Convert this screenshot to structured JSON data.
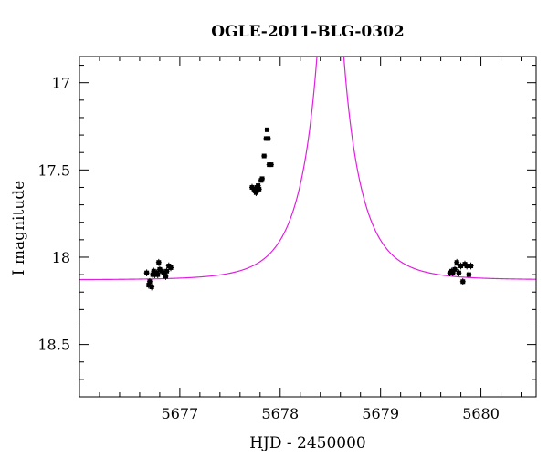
{
  "chart_data": {
    "type": "scatter",
    "title": "OGLE-2011-BLG-0302",
    "xlabel": "HJD - 2450000",
    "ylabel": "I magnitude",
    "xlim": [
      5676.0,
      5680.55
    ],
    "ylim": [
      18.8,
      16.85
    ],
    "y_inverted": true,
    "xticks": [
      5677,
      5678,
      5679,
      5680
    ],
    "xtick_labels": [
      "5677",
      "5678",
      "5679",
      "5680"
    ],
    "yticks": [
      17,
      17.5,
      18,
      18.5
    ],
    "ytick_labels": [
      "17",
      "17.5",
      "18",
      "18.5"
    ],
    "grid": false,
    "series": [
      {
        "kind": "points",
        "color": "#000000",
        "x": [
          5676.67,
          5676.69,
          5676.7,
          5676.72,
          5676.73,
          5676.74,
          5676.75,
          5676.77,
          5676.78,
          5676.79,
          5676.8,
          5676.82,
          5676.84,
          5676.86,
          5676.87,
          5676.89,
          5676.91,
          5677.72,
          5677.74,
          5677.75,
          5677.76,
          5677.77,
          5677.78,
          5677.79,
          5677.81,
          5677.82,
          5677.84,
          5677.86,
          5677.87,
          5677.88,
          5677.89,
          5677.91,
          5679.69,
          5679.71,
          5679.72,
          5679.74,
          5679.76,
          5679.78,
          5679.8,
          5679.82,
          5679.84,
          5679.86,
          5679.88,
          5679.9
        ],
        "y": [
          18.09,
          18.16,
          18.14,
          18.17,
          18.1,
          18.08,
          18.1,
          18.09,
          18.1,
          18.03,
          18.07,
          18.08,
          18.09,
          18.11,
          18.08,
          18.05,
          18.06,
          17.6,
          17.61,
          17.62,
          17.63,
          17.6,
          17.59,
          17.61,
          17.56,
          17.55,
          17.42,
          17.32,
          17.27,
          17.32,
          17.47,
          17.47,
          18.09,
          18.08,
          18.09,
          18.07,
          18.03,
          18.09,
          18.05,
          18.14,
          18.04,
          18.05,
          18.1,
          18.05
        ],
        "yerr": [
          0.02,
          0.02,
          0.02,
          0.02,
          0.02,
          0.02,
          0.02,
          0.02,
          0.02,
          0.02,
          0.02,
          0.02,
          0.02,
          0.02,
          0.02,
          0.02,
          0.02,
          0.02,
          0.02,
          0.02,
          0.02,
          0.02,
          0.02,
          0.02,
          0.01,
          0.01,
          0.01,
          0.01,
          0.01,
          0.01,
          0.01,
          0.01,
          0.02,
          0.02,
          0.02,
          0.02,
          0.02,
          0.02,
          0.02,
          0.02,
          0.02,
          0.02,
          0.02,
          0.02
        ]
      },
      {
        "kind": "model-curve",
        "color": "#e020e0",
        "baseline_mag": 18.13,
        "t0": 5678.5,
        "tE": 0.42,
        "u0": 0.012
      }
    ]
  }
}
